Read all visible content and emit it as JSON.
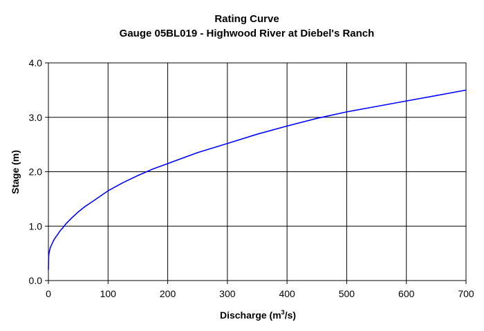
{
  "chart_data": {
    "type": "line",
    "title": "Rating Curve",
    "subtitle": "Gauge 05BL019 - Highwood River at Diebel's Ranch",
    "xlabel": "Discharge (m",
    "xlabel_sup": "3",
    "xlabel_suffix": "/s)",
    "ylabel": "Stage (m)",
    "xlim": [
      0,
      700
    ],
    "ylim": [
      0,
      4.0
    ],
    "xticks": [
      0,
      100,
      200,
      300,
      400,
      500,
      600,
      700
    ],
    "yticks": [
      0,
      1.0,
      2.0,
      3.0,
      4.0
    ],
    "xtick_labels": [
      "0",
      "100",
      "200",
      "300",
      "400",
      "500",
      "600",
      "700"
    ],
    "ytick_labels": [
      "0.0",
      "1.0",
      "2.0",
      "3.0",
      "4.0"
    ],
    "grid": true,
    "legend": "none",
    "series": [
      {
        "color": "#0000ff",
        "x": [
          0,
          0.5,
          1,
          2,
          3,
          5,
          8,
          10,
          15,
          20,
          25,
          30,
          40,
          50,
          60,
          75,
          100,
          125,
          150,
          175,
          200,
          250,
          300,
          350,
          400,
          450,
          500,
          550,
          600,
          650,
          700
        ],
        "y": [
          0.2,
          0.45,
          0.5,
          0.55,
          0.6,
          0.65,
          0.72,
          0.76,
          0.84,
          0.92,
          0.98,
          1.05,
          1.16,
          1.26,
          1.35,
          1.46,
          1.65,
          1.8,
          1.93,
          2.05,
          2.15,
          2.35,
          2.52,
          2.69,
          2.84,
          2.98,
          3.1,
          3.2,
          3.3,
          3.4,
          3.5
        ]
      }
    ]
  }
}
